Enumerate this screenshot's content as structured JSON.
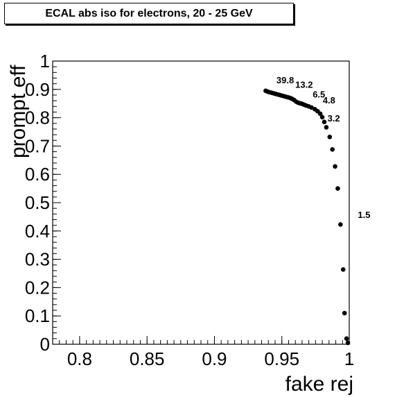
{
  "title": "ECAL abs iso for electrons, 20 - 25 GeV",
  "chart_data": {
    "type": "scatter",
    "title": "ECAL abs iso for electrons, 20 - 25 GeV",
    "xlabel": "fake rej",
    "ylabel": "prompt eff",
    "xlim": [
      0.78,
      1.0
    ],
    "ylim": [
      0,
      1
    ],
    "x_ticks": [
      "0.8",
      "0.85",
      "0.9",
      "0.95",
      "1"
    ],
    "y_ticks": [
      "0",
      "0.1",
      "0.2",
      "0.3",
      "0.4",
      "0.5",
      "0.6",
      "0.7",
      "0.8",
      "0.9",
      "1"
    ],
    "grid": false,
    "marker_color": "#000000",
    "points": [
      {
        "x": 0.938,
        "y": 0.895
      },
      {
        "x": 0.9395,
        "y": 0.892
      },
      {
        "x": 0.941,
        "y": 0.89
      },
      {
        "x": 0.9425,
        "y": 0.888
      },
      {
        "x": 0.944,
        "y": 0.886
      },
      {
        "x": 0.9455,
        "y": 0.884
      },
      {
        "x": 0.947,
        "y": 0.882
      },
      {
        "x": 0.9485,
        "y": 0.88
      },
      {
        "x": 0.95,
        "y": 0.878
      },
      {
        "x": 0.9515,
        "y": 0.876
      },
      {
        "x": 0.953,
        "y": 0.874
      },
      {
        "x": 0.9545,
        "y": 0.872
      },
      {
        "x": 0.956,
        "y": 0.87
      },
      {
        "x": 0.9575,
        "y": 0.867
      },
      {
        "x": 0.959,
        "y": 0.863
      },
      {
        "x": 0.9605,
        "y": 0.857
      },
      {
        "x": 0.962,
        "y": 0.853
      },
      {
        "x": 0.9635,
        "y": 0.851
      },
      {
        "x": 0.965,
        "y": 0.849
      },
      {
        "x": 0.9665,
        "y": 0.846
      },
      {
        "x": 0.968,
        "y": 0.843
      },
      {
        "x": 0.97,
        "y": 0.84
      },
      {
        "x": 0.972,
        "y": 0.836
      },
      {
        "x": 0.9745,
        "y": 0.83
      },
      {
        "x": 0.9765,
        "y": 0.823
      },
      {
        "x": 0.9785,
        "y": 0.814
      },
      {
        "x": 0.98,
        "y": 0.802
      },
      {
        "x": 0.9815,
        "y": 0.785
      },
      {
        "x": 0.983,
        "y": 0.766
      },
      {
        "x": 0.9855,
        "y": 0.732
      },
      {
        "x": 0.9875,
        "y": 0.688
      },
      {
        "x": 0.9895,
        "y": 0.628
      },
      {
        "x": 0.9915,
        "y": 0.55
      },
      {
        "x": 0.9935,
        "y": 0.423
      },
      {
        "x": 0.9955,
        "y": 0.264
      },
      {
        "x": 0.9965,
        "y": 0.11
      },
      {
        "x": 0.998,
        "y": 0.02
      },
      {
        "x": 0.999,
        "y": 0.005
      }
    ],
    "annotations": [
      {
        "text": "39.8",
        "x": 0.9525,
        "y": 0.922
      },
      {
        "text": "13.2",
        "x": 0.9665,
        "y": 0.906
      },
      {
        "text": "6.5",
        "x": 0.9775,
        "y": 0.871
      },
      {
        "text": "4.8",
        "x": 0.985,
        "y": 0.851
      },
      {
        "text": "3.2",
        "x": 0.9885,
        "y": 0.787
      },
      {
        "text": "1.5",
        "x": 1.011,
        "y": 0.446
      }
    ]
  }
}
